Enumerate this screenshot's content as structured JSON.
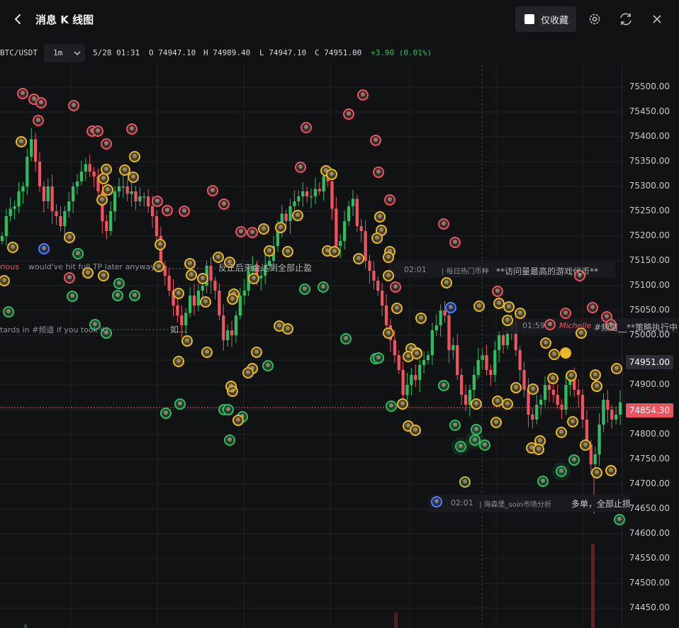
{
  "header": {
    "title": "消息 K 线图",
    "favorites_label": "仅收藏",
    "icons": [
      "back-arrow-icon",
      "settings-icon",
      "refresh-icon",
      "close-icon"
    ]
  },
  "info": {
    "symbol": "BTC/USDT",
    "interval": "1m",
    "datetime": "5/28 01:31",
    "open": "O 74947.10",
    "high": "H 74989.40",
    "low": "L 74947.10",
    "close": "C 74951.00",
    "change": "+3.90 (0.01%)"
  },
  "colors": {
    "up": "#2ebd60",
    "down": "#f0525f",
    "background": "#111214",
    "avatar_gold": "#e8b922"
  },
  "chart_data": {
    "type": "candlestick",
    "ylim": [
      74420,
      75540
    ],
    "yticks": [
      "75500.00",
      "75450.00",
      "75400.00",
      "75350.00",
      "75300.00",
      "75250.00",
      "75200.00",
      "75150.00",
      "75100.00",
      "75050.00",
      "75000.00",
      "74950.00",
      "74900.00",
      "74850.00",
      "74800.00",
      "74750.00",
      "74700.00",
      "74650.00",
      "74600.00",
      "74550.00",
      "74500.00",
      "74450.00"
    ],
    "current_price": "74951.00",
    "marked_price": "74854.30",
    "close_path": [
      75200,
      75240,
      75255,
      75260,
      75290,
      75300,
      75360,
      75395,
      75350,
      75300,
      75270,
      75300,
      75250,
      75240,
      75220,
      75250,
      75270,
      75300,
      75310,
      75330,
      75345,
      75330,
      75320,
      75290,
      75230,
      75210,
      75250,
      75290,
      75300,
      75300,
      75285,
      75290,
      75270,
      75280,
      75280,
      75260,
      75240,
      75200,
      75140,
      75120,
      75090,
      75060,
      75040,
      75020,
      75045,
      75080,
      75060,
      75090,
      75100,
      75140,
      75110,
      75090,
      75040,
      74990,
      75010,
      75000,
      75040,
      75080,
      75090,
      75130,
      75140,
      75115,
      75120,
      75140,
      75150,
      75180,
      75220,
      75245,
      75230,
      75260,
      75270,
      75280,
      75290,
      75280,
      75280,
      75295,
      75290,
      75320,
      75310,
      75255,
      75180,
      75190,
      75230,
      75260,
      75275,
      75220,
      75210,
      75150,
      75130,
      75110,
      75090,
      75060,
      75020,
      74990,
      74960,
      74930,
      74880,
      74900,
      74920,
      74910,
      74940,
      74950,
      74960,
      75010,
      75020,
      75050,
      75040,
      74970,
      74980,
      74920,
      74880,
      74860,
      74890,
      74920,
      74950,
      74960,
      74930,
      74920,
      74970,
      75000,
      74980,
      75010,
      75030,
      74970,
      74930,
      74890,
      74840,
      74830,
      74860,
      74870,
      74900,
      74890,
      74880,
      74860,
      74850,
      74900,
      74920,
      74890,
      74880,
      74830,
      74780,
      74740,
      74760,
      74820,
      74870,
      74850,
      74830,
      74840,
      74865
    ]
  },
  "messages": [
    {
      "user": "rious",
      "text": "would've hit full TP later anyway"
    },
    {
      "text": "反正后来会达到全部止盈"
    },
    {
      "text": "tards in #频道 if you took it!"
    },
    {
      "text": "如..."
    },
    {
      "time": "02:01",
      "channel": "| 每日热门币种",
      "text": "**访问量最高的游戏代币**"
    },
    {
      "time": "01:59",
      "user": "Michelle",
      "text": "#频道__**策略执行中"
    },
    {
      "time": "02:01",
      "channel": "| 海森堡_soin市场分析",
      "text": "多单，全部止损"
    }
  ]
}
